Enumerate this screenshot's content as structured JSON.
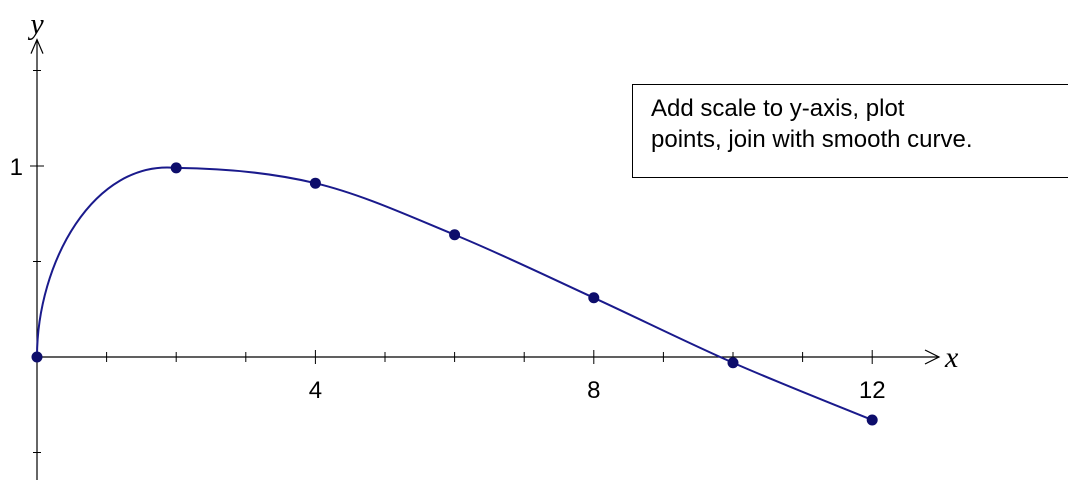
{
  "annotation": {
    "text": "Add scale to y-axis, plot\npoints, join with smooth curve."
  },
  "colors": {
    "curve": "#1a1a8c",
    "points": "#0d0d6b",
    "axis": "#000000"
  },
  "chart_data": {
    "type": "line",
    "xlabel": "x",
    "ylabel": "y",
    "xlim": [
      0,
      12.5
    ],
    "ylim": [
      -0.55,
      1.63
    ],
    "x_ticks": [
      1,
      2,
      3,
      4,
      5,
      6,
      7,
      8,
      9,
      10,
      11,
      12
    ],
    "x_tick_labels": [
      {
        "x": 4,
        "label": "4"
      },
      {
        "x": 8,
        "label": "8"
      },
      {
        "x": 12,
        "label": "12"
      }
    ],
    "y_ticks": [
      -0.5,
      0.5,
      1,
      1.5
    ],
    "y_tick_labels": [
      {
        "y": 1,
        "label": "1"
      }
    ],
    "grid": false,
    "series": [
      {
        "points": [
          {
            "x": 0,
            "y": 0
          },
          {
            "x": 2,
            "y": 0.99
          },
          {
            "x": 4,
            "y": 0.91
          },
          {
            "x": 6,
            "y": 0.64
          },
          {
            "x": 8,
            "y": 0.31
          },
          {
            "x": 10,
            "y": -0.03
          },
          {
            "x": 12,
            "y": -0.33
          }
        ]
      }
    ]
  }
}
